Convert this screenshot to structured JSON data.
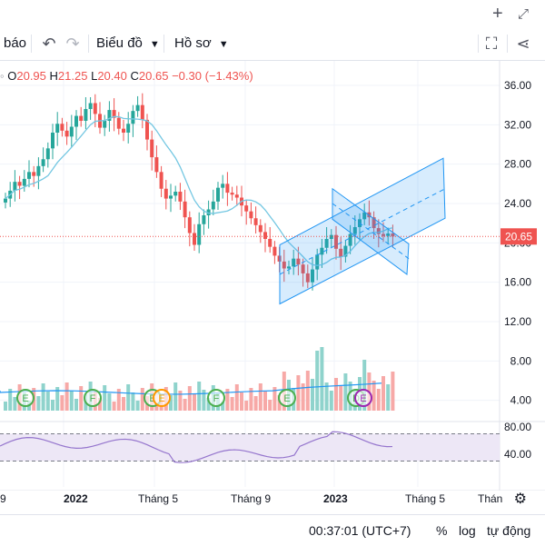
{
  "window": {
    "plus_icon": "plus-icon",
    "expand_icon": "expand-icon"
  },
  "toolbar": {
    "alert_label": "báo",
    "chart_type_label": "Biểu đồ",
    "profile_label": "Hồ sơ",
    "undo_icon": "undo-icon",
    "redo_icon": "redo-icon",
    "fullscreen_icon": "fullscreen-icon",
    "share_icon": "share-icon"
  },
  "legend": {
    "o_label": "O",
    "o_val": "20.95",
    "h_label": "H",
    "h_val": "21.25",
    "l_label": "L",
    "l_val": "20.40",
    "c_label": "C",
    "c_val": "20.65",
    "change": "−0.30 (−1.43%)"
  },
  "price_axis": {
    "ticks": [
      "36.00",
      "32.00",
      "28.00",
      "24.00",
      "20.00",
      "16.00",
      "12.00",
      "8.00",
      "4.00"
    ],
    "last_price": "20.65"
  },
  "rsi_axis": {
    "ticks": [
      "80.00",
      "40.00"
    ]
  },
  "time_axis": {
    "labels": [
      "9",
      "2022",
      "Tháng 5",
      "Tháng 9",
      "2023",
      "Tháng 5",
      "Thán"
    ]
  },
  "bottom": {
    "time": "00:37:01 (UTC+7)",
    "percent": "%",
    "log": "log",
    "auto": "tự động"
  },
  "markers": [
    "E",
    "F",
    "E",
    "E",
    "F",
    "E",
    "D",
    "E"
  ],
  "colors": {
    "up": "#26a69a",
    "down": "#ef5350",
    "ma": "#74c7e2",
    "rsi": "#9575cd",
    "channel": "#2196f3"
  },
  "chart_data": {
    "type": "candlestick",
    "price_scale": [
      12,
      36
    ],
    "last_price": 20.65,
    "ohlc_last": {
      "open": 20.95,
      "high": 21.25,
      "low": 20.4,
      "close": 20.65
    },
    "candles_close": [
      24.5,
      25.3,
      26.2,
      25.8,
      26.5,
      27.2,
      26.8,
      27.8,
      28.5,
      29.6,
      31.2,
      32.1,
      31.4,
      30.8,
      31.8,
      32.9,
      32.4,
      33.6,
      34.2,
      33.1,
      31.7,
      32.4,
      33.5,
      32.7,
      31.6,
      31.2,
      32.1,
      33.4,
      34.0,
      32.5,
      30.5,
      28.7,
      27.2,
      25.5,
      24.5,
      24.8,
      25.2,
      24.2,
      22.6,
      21.0,
      19.8,
      21.9,
      22.8,
      23.4,
      24.2,
      25.6,
      26.0,
      25.1,
      24.9,
      24.6,
      23.8,
      23.2,
      22.5,
      21.8,
      21.1,
      20.4,
      19.6,
      18.7,
      18.1,
      17.4,
      17.6,
      18.4,
      17.8,
      16.9,
      16.0,
      17.3,
      18.8,
      19.5,
      20.4,
      20.8,
      19.4,
      18.6,
      19.7,
      20.9,
      21.6,
      22.4,
      23.1,
      22.6,
      21.5,
      20.9,
      20.7,
      20.95,
      20.65
    ],
    "rsi_scale": [
      20,
      80
    ],
    "rsi_levels": [
      70,
      30
    ]
  }
}
